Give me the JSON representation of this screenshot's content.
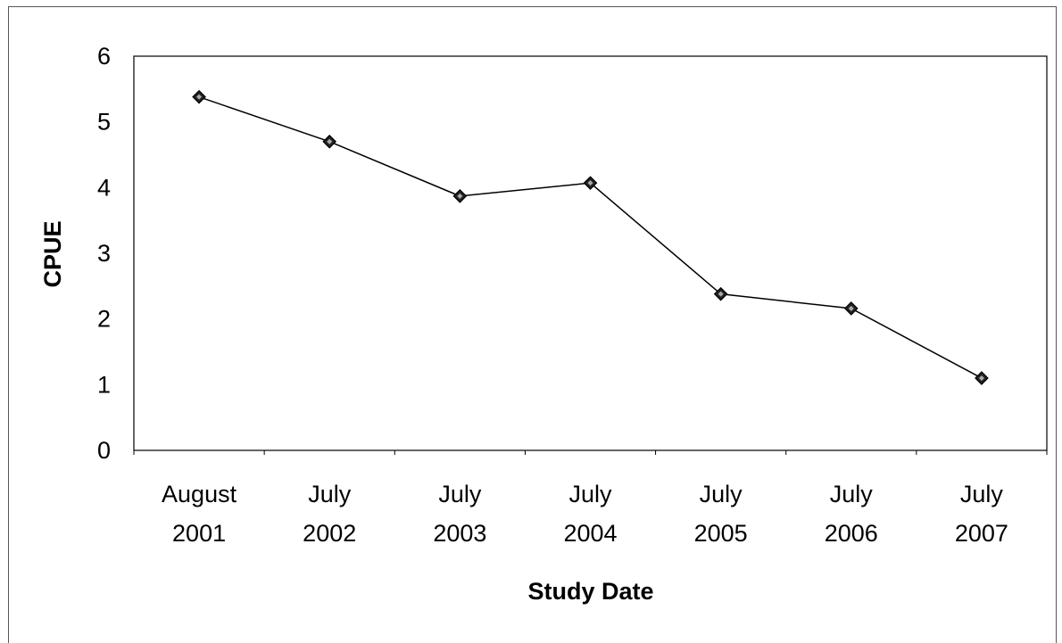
{
  "chart_data": {
    "type": "line",
    "title": "",
    "xlabel": "Study Date",
    "ylabel": "CPUE",
    "categories": [
      [
        "August",
        "2001"
      ],
      [
        "July",
        "2002"
      ],
      [
        "July",
        "2003"
      ],
      [
        "July",
        "2004"
      ],
      [
        "July",
        "2005"
      ],
      [
        "July",
        "2006"
      ],
      [
        "July",
        "2007"
      ]
    ],
    "series": [
      {
        "values": [
          5.38,
          4.7,
          3.87,
          4.07,
          2.38,
          2.16,
          1.1
        ]
      }
    ],
    "ylim": [
      0,
      6
    ],
    "yticks": [
      0,
      1,
      2,
      3,
      4,
      5,
      6
    ],
    "marker": "diamond",
    "line_color": "#000000",
    "plot_border_color": "#000000",
    "grid": false,
    "legend": "none"
  }
}
